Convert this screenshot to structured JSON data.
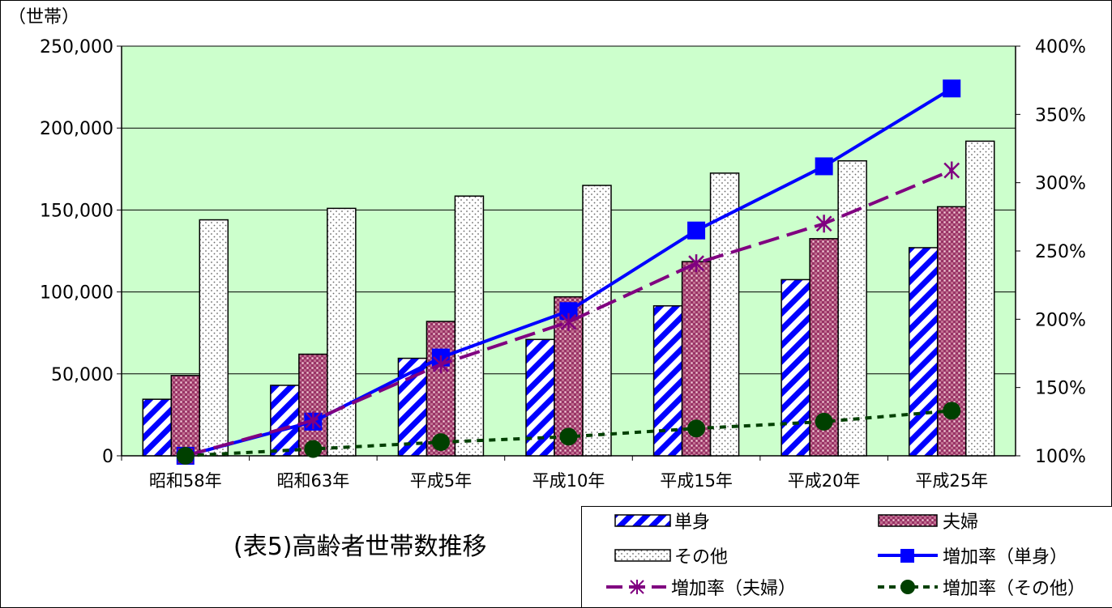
{
  "chart_data": {
    "type": "bar",
    "title": "(表5)高齢者世帯数推移",
    "y_unit_label": "（世帯）",
    "categories": [
      "昭和58年",
      "昭和63年",
      "平成5年",
      "平成10年",
      "平成15年",
      "平成20年",
      "平成25年"
    ],
    "y_left": {
      "ylim": [
        0,
        250000
      ],
      "ticks": [
        "0",
        "50,000",
        "100,000",
        "150,000",
        "200,000",
        "250,000"
      ]
    },
    "y_right": {
      "ylim": [
        1.0,
        4.0
      ],
      "ticks": [
        "100%",
        "150%",
        "200%",
        "250%",
        "300%",
        "350%",
        "400%"
      ]
    },
    "grid": true,
    "plot_background": "#ccffcc",
    "legend_position": "bottom-right",
    "bar_series": [
      {
        "name": "単身",
        "pattern": "diagonal-blue-stripes",
        "color": "#0000ff",
        "values": [
          34500,
          43000,
          59500,
          71000,
          91500,
          107500,
          127000
        ]
      },
      {
        "name": "夫婦",
        "pattern": "maroon-crosshatch",
        "color": "#993366",
        "values": [
          49000,
          62000,
          82000,
          97000,
          118500,
          132500,
          152000
        ]
      },
      {
        "name": "その他",
        "pattern": "dotted-white",
        "color": "#ffffff",
        "values": [
          144000,
          151000,
          158500,
          165000,
          172500,
          180000,
          192000
        ]
      }
    ],
    "line_series": [
      {
        "name": "増加率（単身）",
        "axis": "right",
        "color": "#0000ff",
        "style": "solid",
        "marker": "square",
        "values": [
          1.0,
          1.25,
          1.72,
          2.06,
          2.65,
          3.12,
          3.69
        ]
      },
      {
        "name": "増加率（夫婦）",
        "axis": "right",
        "color": "#800080",
        "style": "dashed",
        "marker": "asterisk",
        "values": [
          1.0,
          1.26,
          1.67,
          1.98,
          2.41,
          2.7,
          3.09
        ]
      },
      {
        "name": "増加率（その他）",
        "axis": "right",
        "color": "#004000",
        "style": "dotted",
        "marker": "circle",
        "values": [
          1.0,
          1.05,
          1.1,
          1.14,
          1.2,
          1.25,
          1.33
        ]
      }
    ]
  }
}
